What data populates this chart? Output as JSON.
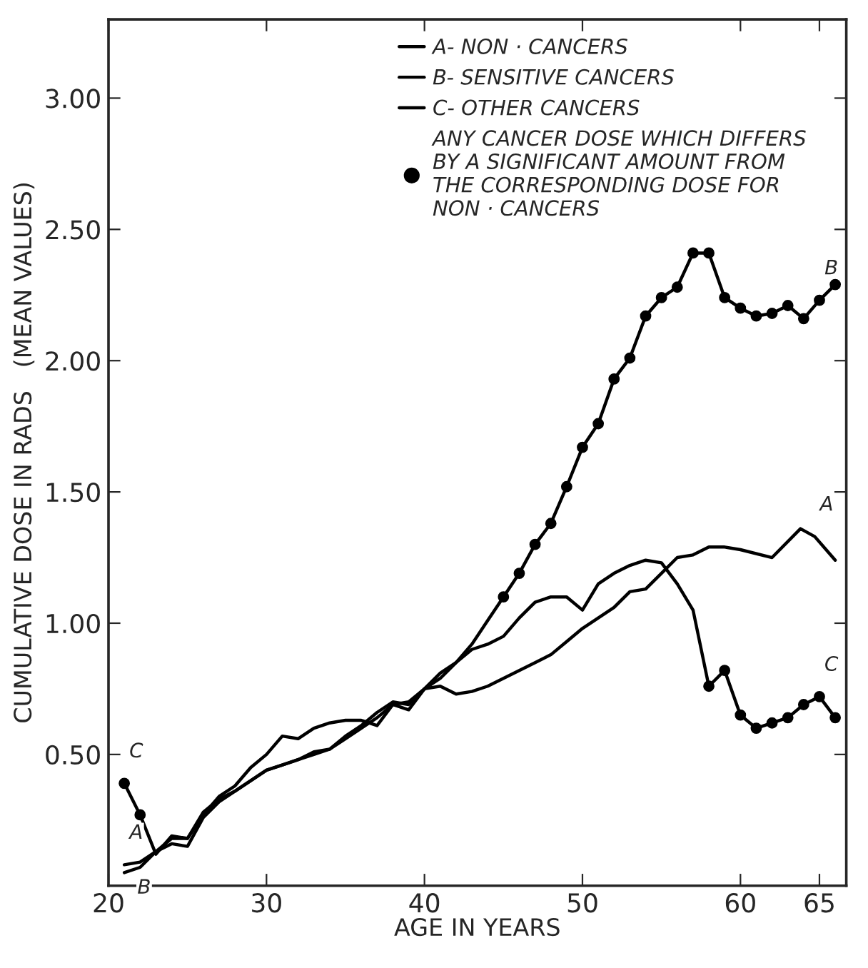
{
  "chart_data": {
    "type": "line",
    "xlabel": "AGE IN YEARS",
    "ylabel": "CUMULATIVE DOSE IN RADS   (MEAN VALUES)",
    "xlim": [
      20,
      66.7
    ],
    "xticks": [
      20,
      30,
      40,
      50,
      60,
      65
    ],
    "ylim": [
      0,
      3.3
    ],
    "yticks": [
      {
        "value": 0.5,
        "label": "0.50"
      },
      {
        "value": 1.0,
        "label": "1.00"
      },
      {
        "value": 1.5,
        "label": "1.50"
      },
      {
        "value": 2.0,
        "label": "2.00"
      },
      {
        "value": 2.5,
        "label": "2.50"
      },
      {
        "value": 3.0,
        "label": "3.00"
      }
    ],
    "grid": false,
    "legend": "top",
    "marker": "none",
    "line_style": "solid",
    "series": [
      {
        "name": "A- NON · CANCERS",
        "color": "#000000",
        "x": [
          21,
          22,
          23,
          24,
          25,
          26,
          27,
          28,
          29,
          30,
          31,
          32,
          33,
          34,
          35,
          36,
          37,
          38,
          39,
          40,
          41,
          42,
          43,
          44,
          45,
          46,
          47,
          48,
          49,
          50,
          51,
          52,
          53,
          54,
          55,
          56,
          57,
          58,
          59,
          60,
          62,
          63.8,
          64.7,
          66
        ],
        "values": [
          0.08,
          0.09,
          0.13,
          0.18,
          0.18,
          0.28,
          0.33,
          0.36,
          0.4,
          0.44,
          0.46,
          0.48,
          0.5,
          0.52,
          0.56,
          0.6,
          0.64,
          0.69,
          0.7,
          0.75,
          0.76,
          0.73,
          0.74,
          0.76,
          0.79,
          0.82,
          0.85,
          0.88,
          0.93,
          0.98,
          1.02,
          1.06,
          1.12,
          1.13,
          1.19,
          1.25,
          1.26,
          1.29,
          1.29,
          1.28,
          1.25,
          1.36,
          1.33,
          1.24
        ]
      },
      {
        "name": "B- SENSITIVE CANCERS",
        "color": "#000000",
        "x": [
          21,
          22,
          23,
          24,
          25,
          26,
          27,
          28,
          29,
          30,
          31,
          32,
          33,
          34,
          35,
          36,
          37,
          38,
          39,
          40,
          41,
          42,
          43,
          44,
          45,
          46,
          47,
          48,
          49,
          50,
          51,
          52,
          53,
          54,
          55,
          56,
          57,
          58,
          59,
          60,
          61,
          62,
          63,
          64,
          65,
          66
        ],
        "values": [
          0.05,
          0.07,
          0.13,
          0.16,
          0.15,
          0.26,
          0.32,
          0.36,
          0.4,
          0.44,
          0.46,
          0.48,
          0.51,
          0.52,
          0.57,
          0.61,
          0.66,
          0.7,
          0.69,
          0.75,
          0.79,
          0.85,
          0.92,
          1.01,
          1.1,
          1.19,
          1.3,
          1.38,
          1.52,
          1.67,
          1.76,
          1.93,
          2.01,
          2.17,
          2.24,
          2.28,
          2.41,
          2.41,
          2.24,
          2.2,
          2.17,
          2.18,
          2.21,
          2.16,
          2.23,
          2.29
        ]
      },
      {
        "name": "C- OTHER CANCERS",
        "color": "#000000",
        "x": [
          21,
          22,
          23,
          24,
          25,
          26,
          27,
          28,
          29,
          30,
          31,
          32,
          33,
          34,
          35,
          36,
          37,
          38,
          39,
          40,
          41,
          42,
          43,
          44,
          45,
          46,
          47,
          48,
          49,
          50,
          51,
          52,
          53,
          54,
          55,
          56,
          57,
          58,
          59,
          60,
          61,
          62,
          63,
          64,
          65,
          66
        ],
        "values": [
          0.39,
          0.27,
          0.12,
          0.19,
          0.18,
          0.27,
          0.34,
          0.38,
          0.45,
          0.5,
          0.57,
          0.56,
          0.6,
          0.62,
          0.63,
          0.63,
          0.61,
          0.69,
          0.67,
          0.75,
          0.81,
          0.85,
          0.9,
          0.92,
          0.95,
          1.02,
          1.08,
          1.1,
          1.1,
          1.05,
          1.15,
          1.19,
          1.22,
          1.24,
          1.23,
          1.15,
          1.05,
          0.76,
          0.82,
          0.65,
          0.6,
          0.62,
          0.64,
          0.69,
          0.72,
          0.64
        ]
      },
      {
        "name": "ANY CANCER DOSE WHICH DIFFERS\nBY A SIGNIFICANT AMOUNT FROM\nTHE CORRESPONDING DOSE FOR\nNON · CANCERS",
        "type": "scatter",
        "marker": "circle",
        "color": "#000000",
        "x": [
          45,
          46,
          47,
          48,
          49,
          50,
          51,
          52,
          53,
          54,
          55,
          56,
          57,
          58,
          59,
          60,
          61,
          62,
          63,
          64,
          65,
          66,
          21,
          22,
          58,
          59,
          60,
          61,
          62,
          63,
          64,
          65,
          66
        ],
        "values": [
          1.1,
          1.19,
          1.3,
          1.38,
          1.52,
          1.67,
          1.76,
          1.93,
          2.01,
          2.17,
          2.24,
          2.28,
          2.41,
          2.41,
          2.24,
          2.2,
          2.17,
          2.18,
          2.21,
          2.16,
          2.23,
          2.29,
          0.39,
          0.27,
          0.76,
          0.82,
          0.65,
          0.6,
          0.62,
          0.64,
          0.69,
          0.72,
          0.64
        ]
      }
    ],
    "annotations": [
      {
        "text": "A",
        "x": 64.7,
        "y": 1.33
      },
      {
        "text": "B",
        "x": 65,
        "y": 2.23
      },
      {
        "text": "C",
        "x": 65,
        "y": 0.72
      },
      {
        "text": "C",
        "x": 21,
        "y": 0.39
      },
      {
        "text": "A",
        "x": 21,
        "y": 0.08
      },
      {
        "text": "B",
        "x": 21,
        "y": 0.05
      }
    ]
  }
}
